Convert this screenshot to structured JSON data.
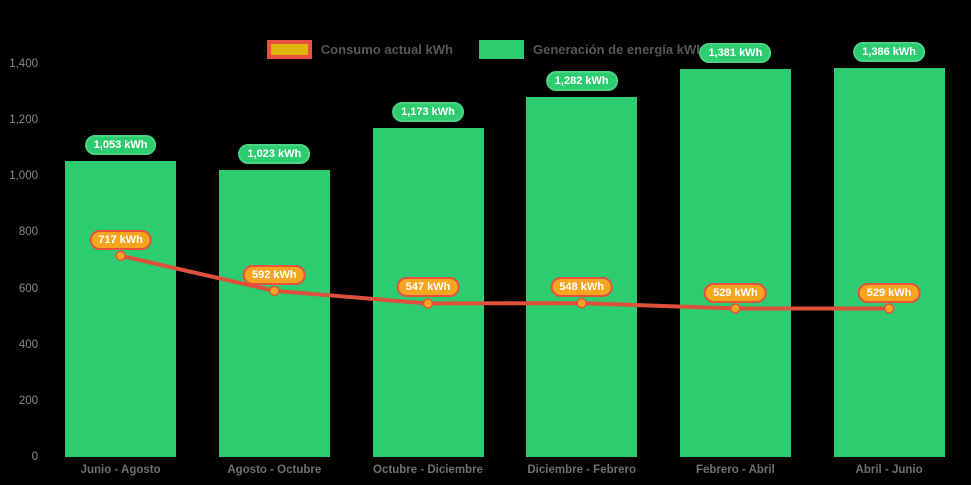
{
  "colors": {
    "background": "#000000",
    "bar_green": "#2ecc71",
    "line_red": "#e0503c",
    "marker_orange": "#f7a51f",
    "marker_ring": "#e8503f",
    "legend_swatch_yellow": "#dfb70c",
    "legend_swatch_border_red": "#e8503f",
    "axis_text_gray": "#878787",
    "legend_text_gray": "#565656",
    "pill_text_white": "#ffffff"
  },
  "legend": {
    "items": [
      {
        "label": "Consumo actual kWh",
        "swatch": "consumption"
      },
      {
        "label": "Generación de energía kWh",
        "swatch": "generation"
      }
    ]
  },
  "chart_data": {
    "type": "bar",
    "subtype": "bar-with-line-overlay",
    "categories": [
      "Junio - Agosto",
      "Agosto - Octubre",
      "Octubre - Diciembre",
      "Diciembre - Febrero",
      "Febrero - Abril",
      "Abril - Junio"
    ],
    "series": [
      {
        "name": "Generación de energía kWh",
        "type": "bar",
        "color": "#2ecc71",
        "values": [
          1053,
          1023,
          1173,
          1282,
          1381,
          1386
        ],
        "labels": [
          "1,053 kWh",
          "1,023 kWh",
          "1,173 kWh",
          "1,282 kWh",
          "1,381 kWh",
          "1,386 kWh"
        ]
      },
      {
        "name": "Consumo actual kWh",
        "type": "line",
        "color": "#e0503c",
        "marker_color": "#f7a51f",
        "values": [
          717,
          592,
          547,
          548,
          529,
          529
        ],
        "labels": [
          "717 kWh",
          "592 kWh",
          "547 kWh",
          "548 kWh",
          "529 kWh",
          "529 kWh"
        ]
      }
    ],
    "title": "",
    "xlabel": "",
    "ylabel": "",
    "ylim": [
      0,
      1400
    ],
    "ytick_values": [
      0,
      200,
      400,
      600,
      800,
      1000,
      1200,
      1400
    ],
    "ytick_labels": [
      "0",
      "200",
      "400",
      "600",
      "800",
      "1,000",
      "1,200",
      "1,400"
    ],
    "grid": false,
    "legend_position": "top-center"
  }
}
